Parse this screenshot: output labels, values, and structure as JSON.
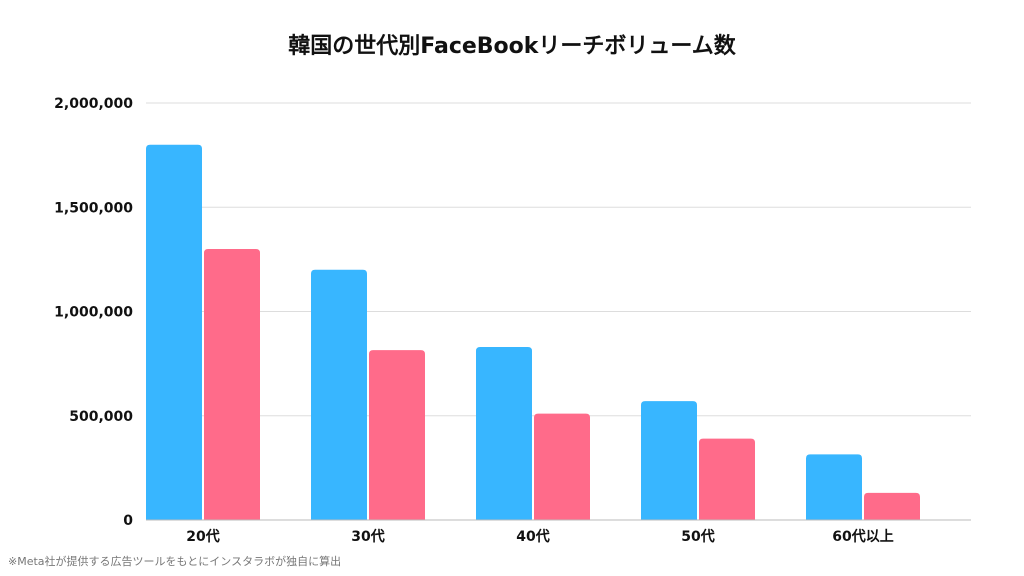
{
  "chart_data": {
    "type": "bar",
    "title": "韓国の世代別FaceBookリーチボリューム数",
    "categories": [
      "20代",
      "30代",
      "40代",
      "50代",
      "60代以上"
    ],
    "series": [
      {
        "values": [
          1800000,
          1200000,
          830000,
          570000,
          315000
        ],
        "color": "#38b6ff"
      },
      {
        "values": [
          1300000,
          815000,
          510000,
          390000,
          130000
        ],
        "color": "#ff6b8a"
      }
    ],
    "ylim": [
      0,
      2000000
    ],
    "yticks": [
      "0",
      "500,000",
      "1,000,000",
      "1,500,000",
      "2,000,000"
    ],
    "ytick_values": [
      0,
      500000,
      1000000,
      1500000,
      2000000
    ],
    "grid": true,
    "legend": "none"
  },
  "footnote": "※Meta社が提供する広告ツールをもとにインスタラボが独自に算出"
}
